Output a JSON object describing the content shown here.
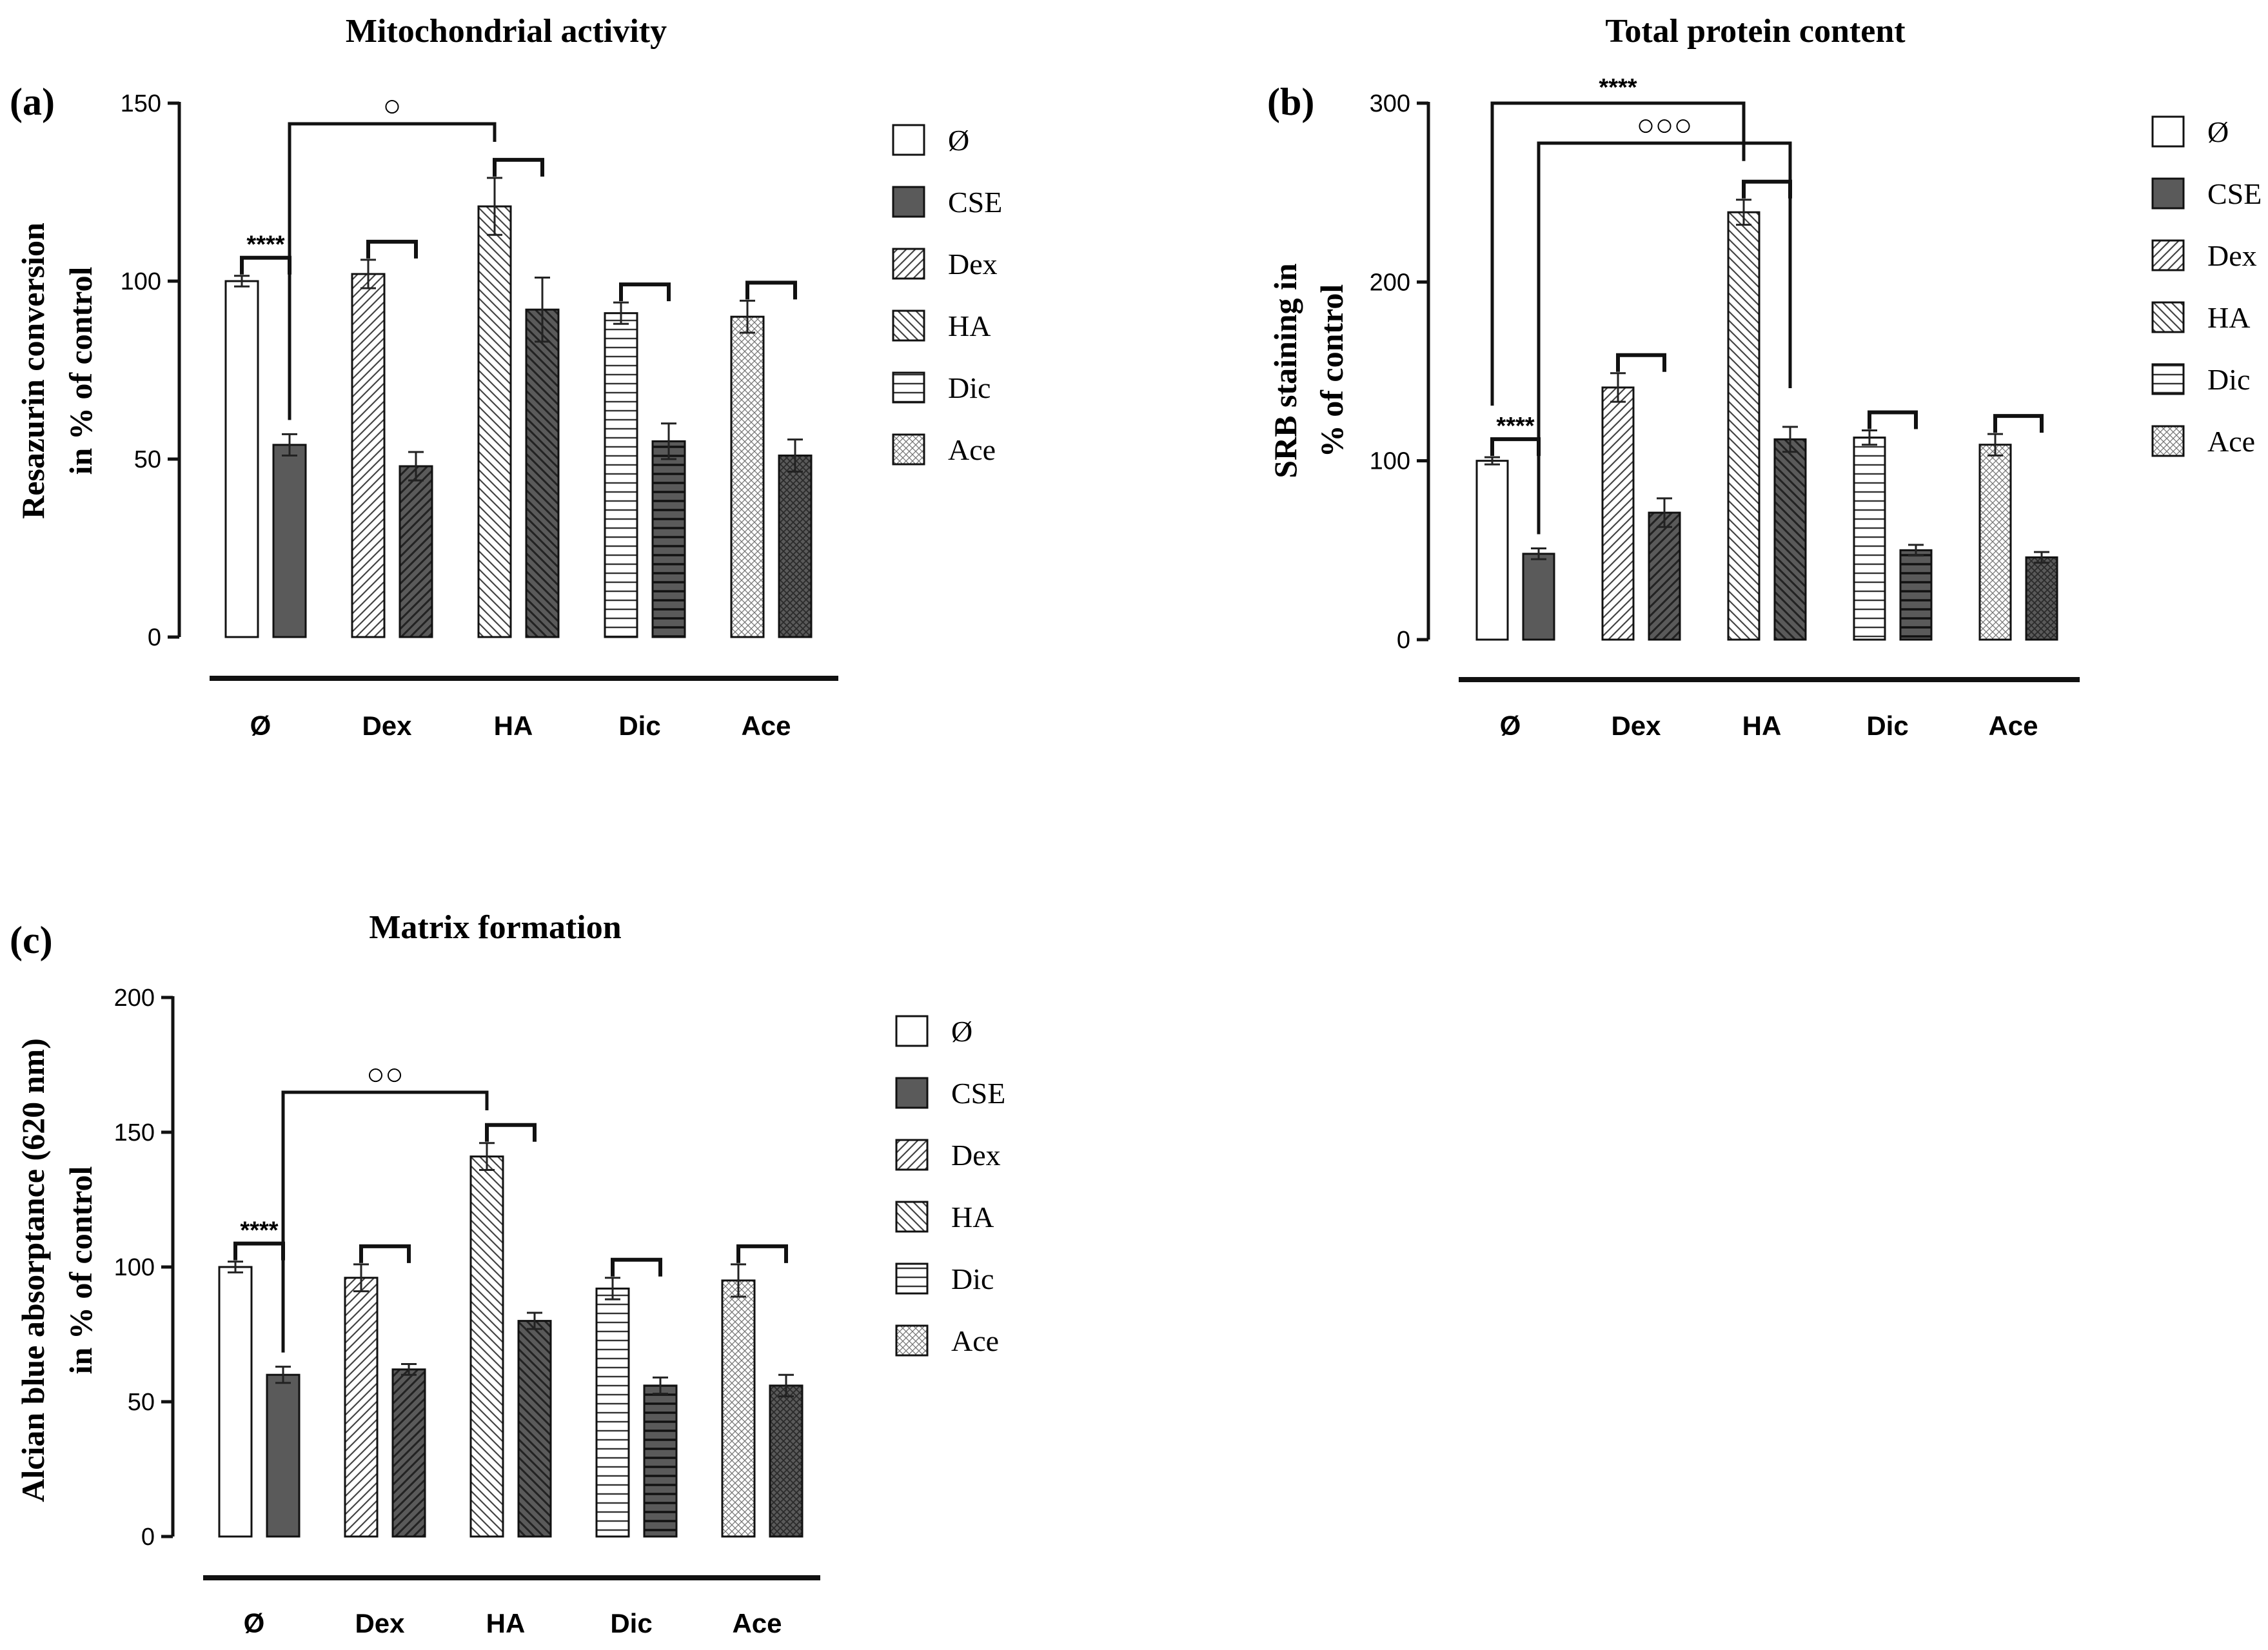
{
  "legend_items": [
    "Ø",
    "CSE",
    "Dex",
    "HA",
    "Dic",
    "Ace"
  ],
  "fill_colors": {
    "control": "#ffffff",
    "cse": "#5a5a5a",
    "line": "#111111"
  },
  "chart_data": [
    {
      "panel": "(a)",
      "type": "bar",
      "title": "Mitochondrial activity",
      "ylabel_line1": "Resazurin conversion",
      "ylabel_line2": "in % of control",
      "xlabel": "",
      "ylim": [
        0,
        150
      ],
      "yticks": [
        "0",
        "50",
        "100",
        "150"
      ],
      "categories": [
        "Ø",
        "Dex",
        "HA",
        "Dic",
        "Ace"
      ],
      "series": [
        {
          "name": "Control",
          "values": [
            100,
            102,
            121,
            91,
            90
          ],
          "errors": [
            1.5,
            4,
            8,
            3,
            4.5
          ]
        },
        {
          "name": "CSE",
          "values": [
            54,
            48,
            92,
            55,
            51
          ],
          "errors": [
            3,
            4,
            9,
            5,
            4.5
          ]
        }
      ],
      "annotations": [
        {
          "text": "****",
          "category": 0,
          "pair": "within"
        },
        {
          "text": "",
          "category": 1,
          "pair": "within"
        },
        {
          "text": "",
          "category": 2,
          "pair": "within"
        },
        {
          "text": "",
          "category": 3,
          "pair": "within"
        },
        {
          "text": "",
          "category": 4,
          "pair": "within"
        },
        {
          "text": "○",
          "from": "Ø-CSE",
          "to": "HA",
          "pair": "across"
        }
      ]
    },
    {
      "panel": "(b)",
      "type": "bar",
      "title": "Total protein content",
      "ylabel_line1": "SRB staining in",
      "ylabel_line2": "% of control",
      "xlabel": "",
      "ylim": [
        0,
        300
      ],
      "yticks": [
        "0",
        "100",
        "200",
        "300"
      ],
      "categories": [
        "Ø",
        "Dex",
        "HA",
        "Dic",
        "Ace"
      ],
      "series": [
        {
          "name": "Control",
          "values": [
            100,
            141,
            239,
            113,
            109
          ],
          "errors": [
            2,
            8,
            7,
            4,
            6
          ]
        },
        {
          "name": "CSE",
          "values": [
            48,
            71,
            112,
            50,
            46
          ],
          "errors": [
            3,
            8,
            7,
            3,
            3
          ]
        }
      ],
      "annotations": [
        {
          "text": "****",
          "category": 0,
          "pair": "within"
        },
        {
          "text": "",
          "category": 1,
          "pair": "within"
        },
        {
          "text": "",
          "category": 2,
          "pair": "within"
        },
        {
          "text": "",
          "category": 3,
          "pair": "within"
        },
        {
          "text": "",
          "category": 4,
          "pair": "within"
        },
        {
          "text": "****",
          "from": "Ø",
          "to": "HA",
          "pair": "across"
        },
        {
          "text": "○○○",
          "from": "Ø-CSE",
          "to": "HA-CSE",
          "pair": "across"
        }
      ]
    },
    {
      "panel": "(c)",
      "type": "bar",
      "title": "Matrix formation",
      "ylabel_line1": "Alcian blue absorptance (620 nm)",
      "ylabel_line2": "in % of control",
      "xlabel": "",
      "ylim": [
        0,
        200
      ],
      "yticks": [
        "0",
        "50",
        "100",
        "150",
        "200"
      ],
      "categories": [
        "Ø",
        "Dex",
        "HA",
        "Dic",
        "Ace"
      ],
      "series": [
        {
          "name": "Control",
          "values": [
            100,
            96,
            141,
            92,
            95
          ],
          "errors": [
            2,
            5,
            5,
            4,
            6
          ]
        },
        {
          "name": "CSE",
          "values": [
            60,
            62,
            80,
            56,
            56
          ],
          "errors": [
            3,
            2,
            3,
            3,
            4
          ]
        }
      ],
      "annotations": [
        {
          "text": "****",
          "category": 0,
          "pair": "within"
        },
        {
          "text": "",
          "category": 1,
          "pair": "within"
        },
        {
          "text": "",
          "category": 2,
          "pair": "within"
        },
        {
          "text": "",
          "category": 3,
          "pair": "within"
        },
        {
          "text": "",
          "category": 4,
          "pair": "within"
        },
        {
          "text": "○○",
          "from": "Ø-CSE",
          "to": "HA",
          "pair": "across"
        }
      ]
    }
  ]
}
